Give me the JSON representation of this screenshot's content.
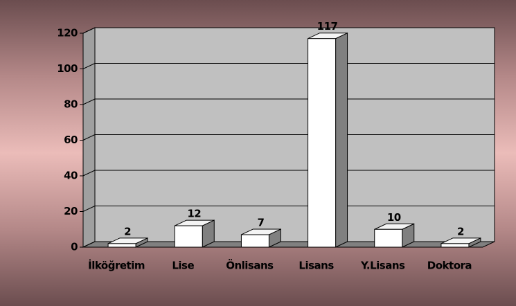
{
  "chart_data": {
    "type": "bar3d",
    "categories": [
      "İlköğretim",
      "Lise",
      "Önlisans",
      "Lisans",
      "Y.Lisans",
      "Doktora"
    ],
    "values": [
      2,
      12,
      7,
      117,
      10,
      2
    ],
    "color": "#ffffff",
    "side_color": "#808080",
    "wall_color": "#c0c0c0",
    "ylim": [
      0,
      120
    ],
    "yticks": [
      0,
      20,
      40,
      60,
      80,
      100,
      120
    ],
    "grid": true
  }
}
